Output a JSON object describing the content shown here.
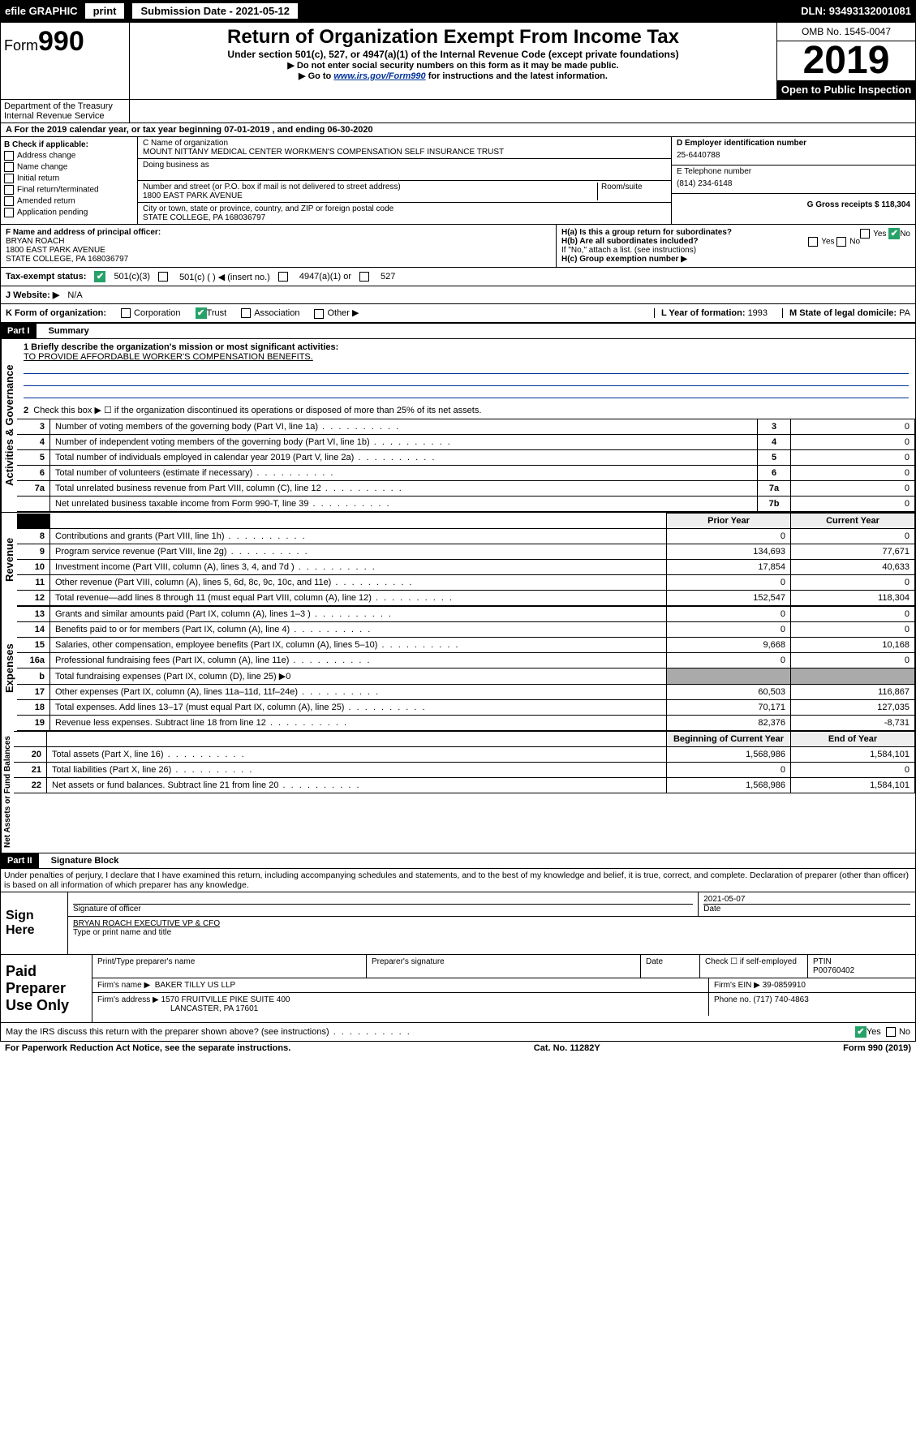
{
  "topbar": {
    "efile": "efile GRAPHIC",
    "print": "print",
    "subdate_label": "Submission Date - 2021-05-12",
    "dln": "DLN: 93493132001081"
  },
  "header": {
    "form_prefix": "Form",
    "form_num": "990",
    "title": "Return of Organization Exempt From Income Tax",
    "subtitle": "Under section 501(c), 527, or 4947(a)(1) of the Internal Revenue Code (except private foundations)",
    "note1": "▶ Do not enter social security numbers on this form as it may be made public.",
    "note2_pre": "▶ Go to ",
    "note2_link": "www.irs.gov/Form990",
    "note2_post": " for instructions and the latest information.",
    "omb": "OMB No. 1545-0047",
    "year": "2019",
    "openpub": "Open to Public Inspection",
    "dept": "Department of the Treasury\nInternal Revenue Service"
  },
  "a": {
    "line": "A For the 2019 calendar year, or tax year beginning 07-01-2019   , and ending 06-30-2020"
  },
  "b": {
    "label": "B Check if applicable:",
    "opts": [
      "Address change",
      "Name change",
      "Initial return",
      "Final return/terminated",
      "Amended return",
      "Application pending"
    ]
  },
  "c": {
    "label_name": "C Name of organization",
    "name": "MOUNT NITTANY MEDICAL CENTER WORKMEN'S COMPENSATION SELF INSURANCE TRUST",
    "dba_label": "Doing business as",
    "addr_label": "Number and street (or P.O. box if mail is not delivered to street address)",
    "room_label": "Room/suite",
    "addr": "1800 EAST PARK AVENUE",
    "city_label": "City or town, state or province, country, and ZIP or foreign postal code",
    "city": "STATE COLLEGE, PA  168036797"
  },
  "d": {
    "label": "D Employer identification number",
    "ein": "25-6440788"
  },
  "e": {
    "label": "E Telephone number",
    "phone": "(814) 234-6148"
  },
  "g": {
    "label": "G Gross receipts $",
    "val": "118,304"
  },
  "f": {
    "label": "F  Name and address of principal officer:",
    "name": "BRYAN ROACH",
    "addr1": "1800 EAST PARK AVENUE",
    "addr2": "STATE COLLEGE, PA  168036797"
  },
  "h": {
    "a": "H(a)  Is this a group return for subordinates?",
    "b": "H(b)  Are all subordinates included?",
    "bnote": "If \"No,\" attach a list. (see instructions)",
    "c": "H(c)  Group exemption number ▶",
    "yes": "Yes",
    "no": "No"
  },
  "i": {
    "label": "Tax-exempt status:",
    "o1": "501(c)(3)",
    "o2": "501(c) (  ) ◀ (insert no.)",
    "o3": "4947(a)(1) or",
    "o4": "527"
  },
  "j": {
    "label": "J   Website: ▶",
    "val": "N/A"
  },
  "k": {
    "label": "K Form of organization:",
    "opts": [
      "Corporation",
      "Trust",
      "Association",
      "Other ▶"
    ]
  },
  "l": {
    "label": "L Year of formation:",
    "val": "1993"
  },
  "m": {
    "label": "M State of legal domicile:",
    "val": "PA"
  },
  "part1": {
    "hdr": "Part I",
    "title": "Summary",
    "line1_label": "1  Briefly describe the organization's mission or most significant activities:",
    "line1_text": "TO PROVIDE AFFORDABLE WORKER'S COMPENSATION BENEFITS.",
    "line2": "Check this box ▶ ☐  if the organization discontinued its operations or disposed of more than 25% of its net assets.",
    "vtab_ag": "Activities & Governance",
    "vtab_rev": "Revenue",
    "vtab_exp": "Expenses",
    "vtab_na": "Net Assets or Fund Balances",
    "rows_ag": [
      {
        "n": "3",
        "t": "Number of voting members of the governing body (Part VI, line 1a)",
        "b": "3",
        "v": "0"
      },
      {
        "n": "4",
        "t": "Number of independent voting members of the governing body (Part VI, line 1b)",
        "b": "4",
        "v": "0"
      },
      {
        "n": "5",
        "t": "Total number of individuals employed in calendar year 2019 (Part V, line 2a)",
        "b": "5",
        "v": "0"
      },
      {
        "n": "6",
        "t": "Total number of volunteers (estimate if necessary)",
        "b": "6",
        "v": "0"
      },
      {
        "n": "7a",
        "t": "Total unrelated business revenue from Part VIII, column (C), line 12",
        "b": "7a",
        "v": "0"
      },
      {
        "n": "",
        "t": "Net unrelated business taxable income from Form 990-T, line 39",
        "b": "7b",
        "v": "0"
      }
    ],
    "col_prior": "Prior Year",
    "col_curr": "Current Year",
    "rows_rev": [
      {
        "n": "8",
        "t": "Contributions and grants (Part VIII, line 1h)",
        "p": "0",
        "c": "0"
      },
      {
        "n": "9",
        "t": "Program service revenue (Part VIII, line 2g)",
        "p": "134,693",
        "c": "77,671"
      },
      {
        "n": "10",
        "t": "Investment income (Part VIII, column (A), lines 3, 4, and 7d )",
        "p": "17,854",
        "c": "40,633"
      },
      {
        "n": "11",
        "t": "Other revenue (Part VIII, column (A), lines 5, 6d, 8c, 9c, 10c, and 11e)",
        "p": "0",
        "c": "0"
      },
      {
        "n": "12",
        "t": "Total revenue—add lines 8 through 11 (must equal Part VIII, column (A), line 12)",
        "p": "152,547",
        "c": "118,304"
      }
    ],
    "rows_exp": [
      {
        "n": "13",
        "t": "Grants and similar amounts paid (Part IX, column (A), lines 1–3 )",
        "p": "0",
        "c": "0"
      },
      {
        "n": "14",
        "t": "Benefits paid to or for members (Part IX, column (A), line 4)",
        "p": "0",
        "c": "0"
      },
      {
        "n": "15",
        "t": "Salaries, other compensation, employee benefits (Part IX, column (A), lines 5–10)",
        "p": "9,668",
        "c": "10,168"
      },
      {
        "n": "16a",
        "t": "Professional fundraising fees (Part IX, column (A), line 11e)",
        "p": "0",
        "c": "0"
      },
      {
        "n": "b",
        "t": "Total fundraising expenses (Part IX, column (D), line 25) ▶0",
        "p": "",
        "c": ""
      },
      {
        "n": "17",
        "t": "Other expenses (Part IX, column (A), lines 11a–11d, 11f–24e)",
        "p": "60,503",
        "c": "116,867"
      },
      {
        "n": "18",
        "t": "Total expenses. Add lines 13–17 (must equal Part IX, column (A), line 25)",
        "p": "70,171",
        "c": "127,035"
      },
      {
        "n": "19",
        "t": "Revenue less expenses. Subtract line 18 from line 12",
        "p": "82,376",
        "c": "-8,731"
      }
    ],
    "col_begin": "Beginning of Current Year",
    "col_end": "End of Year",
    "rows_na": [
      {
        "n": "20",
        "t": "Total assets (Part X, line 16)",
        "p": "1,568,986",
        "c": "1,584,101"
      },
      {
        "n": "21",
        "t": "Total liabilities (Part X, line 26)",
        "p": "0",
        "c": "0"
      },
      {
        "n": "22",
        "t": "Net assets or fund balances. Subtract line 21 from line 20",
        "p": "1,568,986",
        "c": "1,584,101"
      }
    ]
  },
  "part2": {
    "hdr": "Part II",
    "title": "Signature Block",
    "disclaimer": "Under penalties of perjury, I declare that I have examined this return, including accompanying schedules and statements, and to the best of my knowledge and belief, it is true, correct, and complete. Declaration of preparer (other than officer) is based on all information of which preparer has any knowledge.",
    "sign_here": "Sign Here",
    "sig_officer": "Signature of officer",
    "sig_date": "2021-05-07",
    "sig_date_label": "Date",
    "sig_name": "BRYAN ROACH  EXECUTIVE VP & CFO",
    "sig_name_label": "Type or print name and title",
    "paid_label": "Paid Preparer Use Only",
    "prep_name_label": "Print/Type preparer's name",
    "prep_sig_label": "Preparer's signature",
    "prep_date_label": "Date",
    "prep_check": "Check ☐ if self-employed",
    "ptin_label": "PTIN",
    "ptin": "P00760402",
    "firm_name_label": "Firm's name    ▶",
    "firm_name": "BAKER TILLY US LLP",
    "firm_ein_label": "Firm's EIN ▶",
    "firm_ein": "39-0859910",
    "firm_addr_label": "Firm's address ▶",
    "firm_addr1": "1570 FRUITVILLE PIKE SUITE 400",
    "firm_addr2": "LANCASTER, PA  17601",
    "firm_phone_label": "Phone no.",
    "firm_phone": "(717) 740-4863",
    "discuss": "May the IRS discuss this return with the preparer shown above? (see instructions)"
  },
  "footer": {
    "pra": "For Paperwork Reduction Act Notice, see the separate instructions.",
    "cat": "Cat. No. 11282Y",
    "form": "Form 990 (2019)"
  },
  "colors": {
    "link": "#003399",
    "check": "#26a269"
  }
}
